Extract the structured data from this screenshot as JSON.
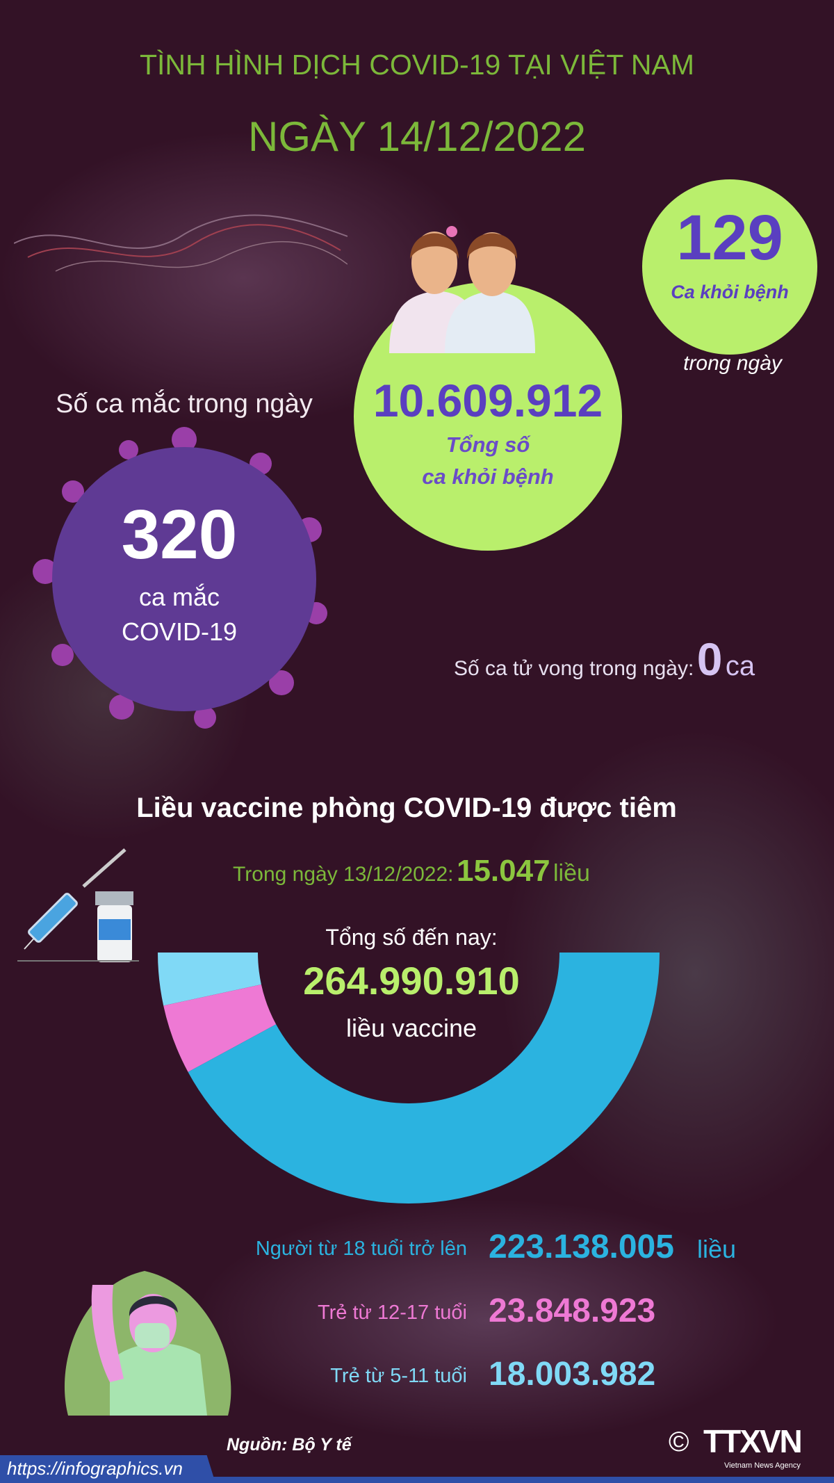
{
  "header": {
    "title": "TÌNH HÌNH DỊCH COVID-19 TẠI VIỆT NAM",
    "date": "NGÀY 14/12/2022"
  },
  "recovered_today": {
    "value": "129",
    "label": "Ca khỏi bệnh",
    "suffix": "trong ngày"
  },
  "recovered_total": {
    "value": "10.609.912",
    "label_line1": "Tổng số",
    "label_line2": "ca khỏi bệnh"
  },
  "cases_today": {
    "heading": "Số ca mắc trong ngày",
    "value": "320",
    "label_line1": "ca mắc",
    "label_line2": "COVID-19"
  },
  "deaths": {
    "label": "Số ca tử vong trong ngày:",
    "value": "0",
    "unit": "ca"
  },
  "vaccine": {
    "heading": "Liều vaccine phòng COVID-19 được tiêm",
    "daily_label": "Trong ngày 13/12/2022:",
    "daily_value": "15.047",
    "daily_unit": "liều",
    "total_label": "Tổng số đến nay:",
    "total_value": "264.990.910",
    "total_unit": "liều vaccine"
  },
  "chart_data": {
    "type": "pie",
    "shape": "half-donut",
    "categories": [
      "Người từ 18 tuổi trở lên",
      "Trẻ từ 12-17 tuổi",
      "Trẻ từ 5-11 tuổi"
    ],
    "values": [
      223138005,
      23848923,
      18003982
    ],
    "colors": [
      "#2bb3e0",
      "#ee79d4",
      "#80d9f6"
    ]
  },
  "breakdown": [
    {
      "label": "Người từ 18 tuổi trở lên",
      "value": "223.138.005",
      "unit": "liều",
      "color": "#2bb3e0"
    },
    {
      "label": "Trẻ từ 12-17 tuổi",
      "value": "23.848.923",
      "unit": "",
      "color": "#ee79d4"
    },
    {
      "label": "Trẻ từ 5-11 tuổi",
      "value": "18.003.982",
      "unit": "",
      "color": "#80d9f6"
    }
  ],
  "footer": {
    "source": "Nguồn: Bộ Y tế",
    "url": "https://infographics.vn",
    "logo": "TTXVN",
    "logo_sub": "Vietnam News Agency",
    "copyright": "©"
  },
  "colors": {
    "title_green": "#7cb83a",
    "lime": "#b9ef6c",
    "purple": "#5a3fc0",
    "background": "#331226"
  }
}
